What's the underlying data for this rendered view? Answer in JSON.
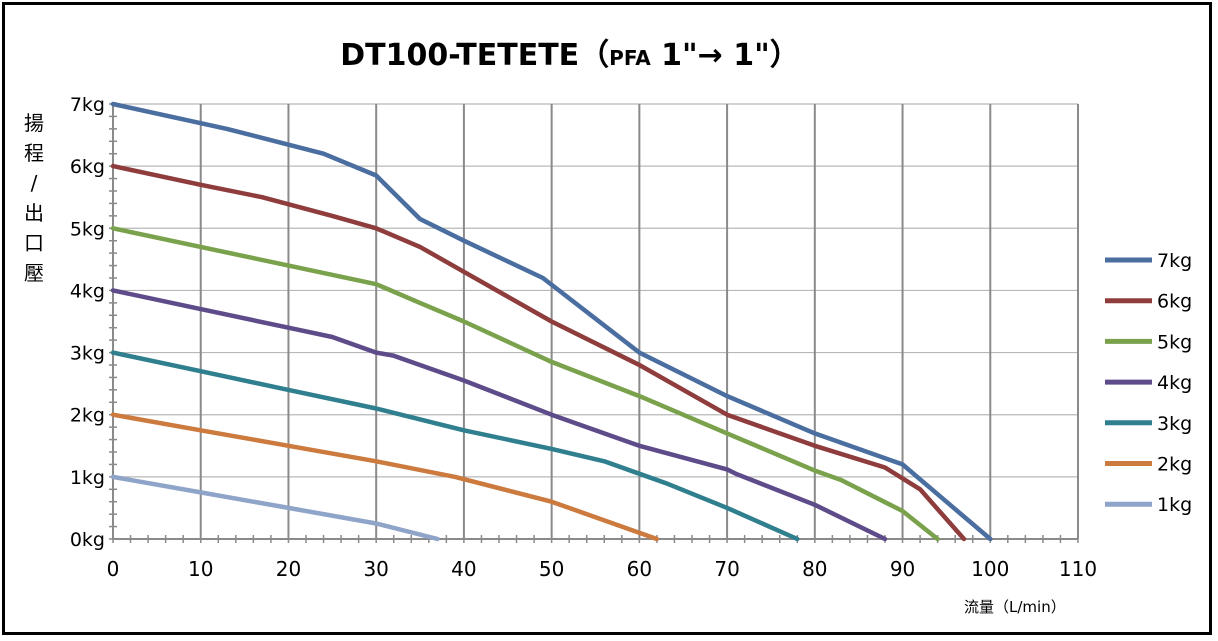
{
  "chart_data": {
    "type": "line",
    "title_main": "DT100-TETETE（",
    "title_pfa": "PFA",
    "title_rest": " 1\"→ 1\"）",
    "ylabel": "揚程/出口壓",
    "ylabel_chars": [
      "揚",
      "程",
      "/",
      "出",
      "口",
      "壓"
    ],
    "xlabel": "流量（L/min）",
    "xlim": [
      0,
      110
    ],
    "ylim": [
      0,
      7
    ],
    "x_ticks": [
      "0",
      "10",
      "20",
      "30",
      "40",
      "50",
      "60",
      "70",
      "80",
      "90",
      "100",
      "110"
    ],
    "y_ticks": [
      "0kg",
      "1kg",
      "2kg",
      "3kg",
      "4kg",
      "5kg",
      "6kg",
      "7kg"
    ],
    "grid": true,
    "legend_position": "right",
    "series": [
      {
        "name": "7kg",
        "color": "#4a6ea0",
        "x": [
          0,
          13,
          24,
          30,
          35,
          40,
          49,
          60,
          70,
          80,
          90,
          95,
          100
        ],
        "y": [
          7.0,
          6.6,
          6.2,
          5.85,
          5.15,
          4.8,
          4.2,
          3.0,
          2.3,
          1.7,
          1.2,
          0.6,
          0.0
        ]
      },
      {
        "name": "6kg",
        "color": "#8e3c3c",
        "x": [
          0,
          10,
          17,
          25,
          30,
          35,
          40,
          50,
          60,
          70,
          80,
          88,
          92,
          97
        ],
        "y": [
          6.0,
          5.7,
          5.5,
          5.2,
          5.0,
          4.7,
          4.3,
          3.5,
          2.8,
          2.0,
          1.5,
          1.15,
          0.8,
          0.0
        ]
      },
      {
        "name": "5kg",
        "color": "#7aa24c",
        "x": [
          0,
          10,
          20,
          30,
          35,
          40,
          50,
          60,
          70,
          80,
          83,
          90,
          94
        ],
        "y": [
          5.0,
          4.7,
          4.4,
          4.1,
          3.8,
          3.5,
          2.85,
          2.3,
          1.7,
          1.1,
          0.95,
          0.45,
          0.0
        ]
      },
      {
        "name": "4kg",
        "color": "#5e4c8a",
        "x": [
          0,
          10,
          20,
          25,
          30,
          32,
          40,
          50,
          60,
          70,
          71,
          80,
          88
        ],
        "y": [
          4.0,
          3.7,
          3.4,
          3.25,
          3.0,
          2.95,
          2.55,
          2.0,
          1.5,
          1.12,
          1.05,
          0.55,
          0.0
        ]
      },
      {
        "name": "3kg",
        "color": "#2f7f8f",
        "x": [
          0,
          10,
          20,
          30,
          40,
          50,
          56,
          63,
          70,
          78
        ],
        "y": [
          3.0,
          2.7,
          2.4,
          2.1,
          1.75,
          1.45,
          1.25,
          0.9,
          0.5,
          0.0
        ]
      },
      {
        "name": "2kg",
        "color": "#cc7a3e",
        "x": [
          0,
          10,
          20,
          30,
          39,
          50,
          62
        ],
        "y": [
          2.0,
          1.75,
          1.5,
          1.25,
          1.0,
          0.6,
          0.0
        ]
      },
      {
        "name": "1kg",
        "color": "#8ea4c8",
        "x": [
          0,
          10,
          20,
          30,
          37
        ],
        "y": [
          1.0,
          0.75,
          0.5,
          0.25,
          0.0
        ]
      }
    ]
  }
}
